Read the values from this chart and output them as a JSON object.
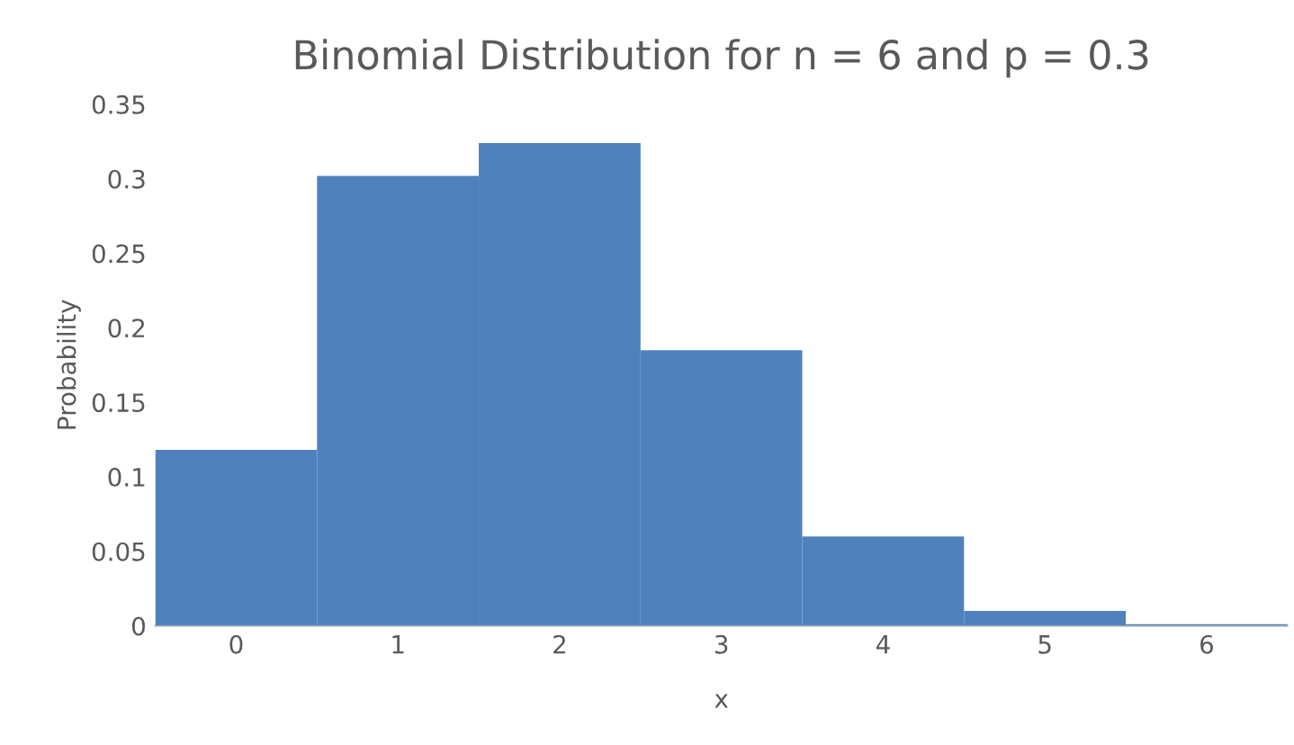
{
  "chart_data": {
    "type": "bar",
    "title": "Binomial Distribution for n = 6 and p = 0.3",
    "xlabel": "x",
    "ylabel": "Probability",
    "categories": [
      "0",
      "1",
      "2",
      "3",
      "4",
      "5",
      "6"
    ],
    "values": [
      0.118,
      0.302,
      0.324,
      0.185,
      0.06,
      0.01,
      0.001
    ],
    "color": "#4f81bd",
    "ylim": [
      0,
      0.35
    ],
    "yticks": [
      0,
      0.05,
      0.1,
      0.15,
      0.2,
      0.25,
      0.3,
      0.35
    ],
    "grid": false
  }
}
